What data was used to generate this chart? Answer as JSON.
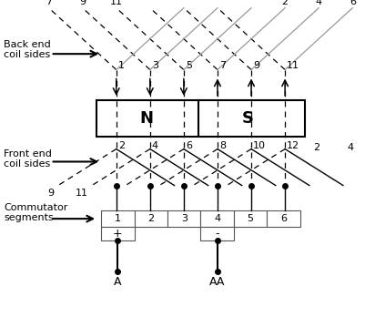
{
  "bg_color": "#ffffff",
  "slot_labels_top": [
    "1",
    "3",
    "5",
    "7",
    "9",
    "11"
  ],
  "slot_labels_bot": [
    "2",
    "4",
    "6",
    "8",
    "10",
    "12"
  ],
  "comm_seg_labels": [
    "1",
    "2",
    "3",
    "4",
    "5",
    "6"
  ],
  "back_top_labels": [
    [
      "7",
      0.085
    ],
    [
      "9",
      0.175
    ],
    [
      "11",
      0.265
    ],
    [
      "2",
      0.6
    ],
    [
      "4",
      0.695
    ],
    [
      "6",
      0.79
    ]
  ],
  "front_bot_labels": [
    [
      "9",
      0.165
    ],
    [
      "11",
      0.235
    ],
    [
      "2",
      0.875
    ],
    [
      "4",
      0.955
    ]
  ],
  "label_back_end_coil": "Back end\ncoil sides",
  "label_front_end_coil": "Front end\ncoil sides",
  "label_commutator": "Commutator\nsegments",
  "gray_color": "#999999",
  "black_color": "#000000"
}
